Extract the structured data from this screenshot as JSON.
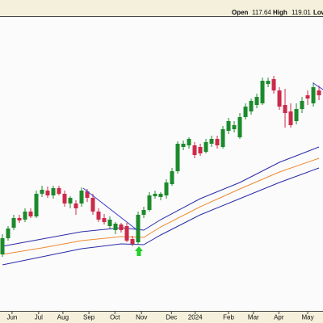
{
  "chart_data": {
    "type": "candlestick",
    "header": {
      "open_label": "Open",
      "open": 117.64,
      "high_label": "High",
      "high": 119.01,
      "low_label": "Low"
    },
    "up_color": "#1c8a2c",
    "down_color": "#cc2a4a",
    "open": [
      26.25,
      31.25,
      34.5,
      37.5,
      37,
      39.5,
      38,
      45,
      46,
      44.5,
      46.75,
      45,
      42,
      42,
      42,
      45.75,
      43.75,
      39.5,
      37.5,
      35,
      33.75,
      35.5,
      35,
      31,
      30,
      38.5,
      40,
      44.25,
      44,
      44.5,
      48,
      52,
      59.5,
      60,
      60,
      59.5,
      58,
      60.5,
      62,
      59.5,
      64.5,
      65,
      62.5,
      68.75,
      70.5,
      72.5,
      73,
      79,
      80.5,
      77,
      72.5,
      70.5,
      67.5,
      71.25,
      75.5,
      73,
      77
    ],
    "high": [
      32.5,
      35,
      38.5,
      38.5,
      40.5,
      40.5,
      46,
      47.5,
      47.25,
      47.5,
      47.5,
      46,
      44.25,
      43,
      47,
      46.5,
      45,
      40.5,
      38.75,
      38,
      36.25,
      36,
      36,
      32,
      39.5,
      41,
      45.5,
      46,
      45.5,
      49.5,
      53,
      61.25,
      61.5,
      62.5,
      61,
      60.5,
      62,
      63,
      63,
      66,
      68.5,
      67.5,
      70,
      73,
      74.5,
      76,
      81,
      81,
      81.5,
      78,
      77.5,
      73,
      73,
      75,
      77,
      79.5,
      78.5
    ],
    "low": [
      25.5,
      30.5,
      33.75,
      36,
      36.25,
      37.5,
      37.5,
      44,
      43.75,
      43.5,
      44.5,
      41,
      40.5,
      38.5,
      41,
      42.5,
      38.5,
      36.25,
      35.5,
      34.25,
      32.5,
      33,
      30,
      28.75,
      29.25,
      37.5,
      39.5,
      43.5,
      43,
      43.5,
      47.5,
      51.25,
      58.5,
      59,
      56,
      56.75,
      57.5,
      59.5,
      59,
      59,
      63.5,
      64,
      62,
      68,
      69.5,
      71.5,
      72.5,
      78,
      76,
      71,
      65.5,
      65.5,
      66.5,
      70,
      72.5,
      72,
      74
    ],
    "close": [
      31.25,
      34.25,
      37.5,
      36.75,
      39.5,
      38,
      45,
      46.25,
      44.5,
      46.75,
      45,
      42,
      43.75,
      40.5,
      46,
      43.75,
      39.5,
      37,
      36.25,
      37,
      35.75,
      33.75,
      30.5,
      29.5,
      38.5,
      40,
      44.5,
      45,
      45,
      48.5,
      52,
      60.5,
      60.5,
      62,
      57,
      57.5,
      61,
      62,
      60,
      65,
      67.5,
      66.25,
      68.75,
      72,
      73.75,
      75,
      80,
      80,
      77,
      72,
      70,
      66.25,
      71.25,
      73.75,
      74.5,
      78,
      75.5
    ],
    "line_x": [
      0,
      7,
      14,
      21,
      25,
      28,
      35,
      42,
      49,
      56
    ],
    "lines": [
      {
        "color": "#2a2aa8",
        "values": [
          28.75,
          31,
          33.25,
          34.5,
          33.75,
          37,
          43.5,
          48.5,
          54.75,
          59.5
        ]
      },
      {
        "color": "#f08a30",
        "values": [
          26.25,
          28.25,
          30.5,
          31.75,
          31.5,
          34.75,
          41,
          46.5,
          51.75,
          56
        ]
      },
      {
        "color": "#2a2aa8",
        "values": [
          23,
          25.5,
          28,
          29.5,
          29.25,
          32.25,
          38.5,
          43.5,
          48.5,
          53
        ]
      }
    ],
    "xlim": [
      -0.43,
      56.71
    ],
    "ylim": [
      8.75,
      99.75
    ],
    "xticks": [
      {
        "value": 1.7,
        "label": "Jun"
      },
      {
        "value": 6.4,
        "label": "Jul"
      },
      {
        "value": 10.7,
        "label": "Aug"
      },
      {
        "value": 15.3,
        "label": "Sep"
      },
      {
        "value": 19.9,
        "label": "Oct"
      },
      {
        "value": 24.6,
        "label": "Nov"
      },
      {
        "value": 29.9,
        "label": "Dec"
      },
      {
        "value": 34.1,
        "label": "2024"
      },
      {
        "value": 40,
        "label": "Feb"
      },
      {
        "value": 44.4,
        "label": "Mar"
      },
      {
        "value": 48.9,
        "label": "Apr"
      },
      {
        "value": 54,
        "label": "May"
      }
    ]
  }
}
